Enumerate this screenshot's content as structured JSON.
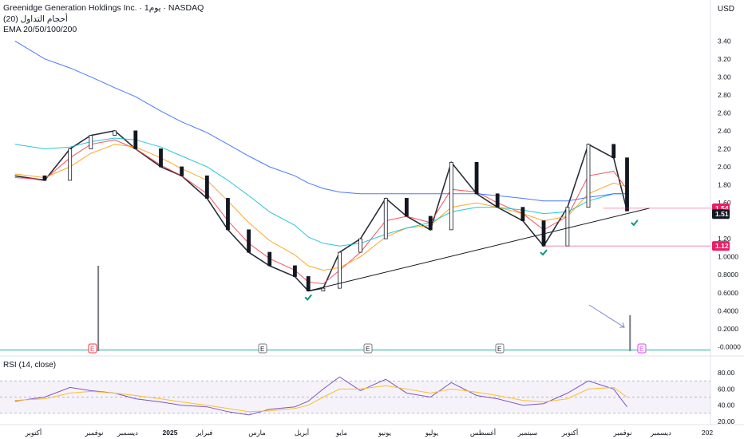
{
  "header": {
    "line1": "Greenidge Generation Holdings Inc. · 1يوم · NASDAQ",
    "line2": "أحجام التداول (20)",
    "line3": "EMA 20/50/100/200",
    "currency": "USD"
  },
  "rsi": {
    "title": "RSI (14, close)",
    "ticks": [
      "80.00",
      "60.00",
      "40.00",
      "20.00"
    ]
  },
  "price_axis": {
    "ticks": [
      "3.40",
      "3.20",
      "3.00",
      "2.80",
      "2.60",
      "2.40",
      "2.20",
      "2.00",
      "1.80",
      "1.60",
      "1.20",
      "1.0000",
      "0.8000",
      "0.6000",
      "0.4000",
      "0.2000",
      "-0.0000"
    ],
    "labels": [
      {
        "text": "1.54",
        "value": 1.54,
        "color": "#e91e63"
      },
      {
        "text": "1.51",
        "value": 1.51,
        "color": "#131722"
      },
      {
        "text": "1.12",
        "value": 1.12,
        "color": "#e91e63"
      }
    ]
  },
  "x_axis": {
    "ticks": [
      "أكتوبر",
      "نوفمبر",
      "ديسمبر",
      "2025",
      "فبراير",
      "مارس",
      "أبريل",
      "مايو",
      "يونيو",
      "يوليو",
      "أغسطس",
      "سبتمبر",
      "أكتوبر",
      "نوفمبر",
      "ديسمبر",
      "202"
    ]
  },
  "earnings_markers": [
    "E",
    "E",
    "E",
    "E",
    "E"
  ],
  "colors": {
    "up": "#089981",
    "down": "#131722",
    "ema20": "#f23645",
    "ema50": "#ff9800",
    "ema100": "#00bcd4",
    "ema200": "#2962ff",
    "rsi": "#7e57c2",
    "rsi_ma": "#fbc02d",
    "trendline": "#131722",
    "check": "#089981",
    "volume": "#787b86",
    "volume_up": "#26a69a"
  },
  "chart_data": [
    {
      "type": "line",
      "title": "Greenidge Generation Holdings Inc. · 1يوم · NASDAQ",
      "ylabel": "USD",
      "ylim": [
        -0.05,
        3.5
      ],
      "scale": "linear",
      "x": [
        "2024-09-25",
        "2024-10-15",
        "2024-11-01",
        "2024-11-15",
        "2024-12-01",
        "2024-12-15",
        "2025-01-01",
        "2025-01-15",
        "2025-02-01",
        "2025-02-15",
        "2025-03-01",
        "2025-03-15",
        "2025-04-01",
        "2025-04-10",
        "2025-04-20",
        "2025-05-01",
        "2025-05-15",
        "2025-06-01",
        "2025-06-15",
        "2025-07-01",
        "2025-07-15",
        "2025-08-01",
        "2025-08-15",
        "2025-09-01",
        "2025-09-15",
        "2025-10-01",
        "2025-10-15",
        "2025-11-01",
        "2025-11-10"
      ],
      "series": [
        {
          "name": "price",
          "values": [
            1.9,
            1.85,
            2.2,
            2.35,
            2.4,
            2.2,
            2.0,
            1.9,
            1.65,
            1.3,
            1.05,
            0.9,
            0.78,
            0.62,
            0.65,
            1.05,
            1.2,
            1.65,
            1.45,
            1.3,
            2.05,
            1.7,
            1.55,
            1.4,
            1.12,
            1.55,
            2.25,
            2.1,
            1.51
          ]
        },
        {
          "name": "EMA 20",
          "values": [
            1.88,
            1.86,
            2.1,
            2.25,
            2.3,
            2.2,
            2.02,
            1.9,
            1.7,
            1.4,
            1.15,
            0.98,
            0.85,
            0.72,
            0.7,
            0.85,
            1.05,
            1.4,
            1.45,
            1.38,
            1.75,
            1.72,
            1.6,
            1.48,
            1.3,
            1.45,
            1.9,
            1.95,
            1.75
          ]
        },
        {
          "name": "EMA 50",
          "values": [
            1.92,
            1.88,
            2.0,
            2.15,
            2.25,
            2.22,
            2.1,
            1.98,
            1.85,
            1.62,
            1.38,
            1.18,
            1.02,
            0.9,
            0.85,
            0.88,
            1.0,
            1.22,
            1.32,
            1.35,
            1.55,
            1.6,
            1.55,
            1.48,
            1.4,
            1.45,
            1.7,
            1.82,
            1.78
          ]
        },
        {
          "name": "EMA 100",
          "values": [
            2.25,
            2.2,
            2.22,
            2.28,
            2.32,
            2.3,
            2.22,
            2.12,
            2.0,
            1.85,
            1.68,
            1.5,
            1.35,
            1.22,
            1.15,
            1.12,
            1.15,
            1.25,
            1.32,
            1.38,
            1.5,
            1.55,
            1.55,
            1.52,
            1.48,
            1.5,
            1.62,
            1.7,
            1.7
          ]
        },
        {
          "name": "EMA 200",
          "values": [
            3.4,
            3.2,
            3.1,
            3.0,
            2.88,
            2.78,
            2.62,
            2.5,
            2.38,
            2.25,
            2.12,
            2.0,
            1.9,
            1.82,
            1.76,
            1.72,
            1.7,
            1.7,
            1.7,
            1.7,
            1.7,
            1.7,
            1.68,
            1.65,
            1.62,
            1.62,
            1.66,
            1.7,
            1.7
          ]
        }
      ],
      "trendline": {
        "from": [
          "2025-04-10",
          0.62
        ],
        "to": [
          "2025-11-25",
          1.54
        ]
      },
      "levels": [
        1.54,
        1.51,
        1.12
      ],
      "volume_spikes": [
        {
          "x": "2024-11-20",
          "value": 0.9
        },
        {
          "x": "2025-11-12",
          "value": 0.35
        }
      ]
    },
    {
      "type": "line",
      "title": "RSI (14, close)",
      "ylim": [
        20,
        85
      ],
      "bands": [
        30,
        50,
        70
      ],
      "x": [
        "2024-09-25",
        "2024-10-15",
        "2024-11-01",
        "2024-11-15",
        "2024-12-01",
        "2024-12-15",
        "2025-01-01",
        "2025-01-15",
        "2025-02-01",
        "2025-02-15",
        "2025-03-01",
        "2025-03-15",
        "2025-04-01",
        "2025-04-10",
        "2025-04-20",
        "2025-05-01",
        "2025-05-15",
        "2025-06-01",
        "2025-06-15",
        "2025-07-01",
        "2025-07-15",
        "2025-08-01",
        "2025-08-15",
        "2025-09-01",
        "2025-09-15",
        "2025-10-01",
        "2025-10-15",
        "2025-11-01",
        "2025-11-10"
      ],
      "series": [
        {
          "name": "RSI",
          "values": [
            45,
            50,
            62,
            58,
            55,
            48,
            44,
            40,
            38,
            32,
            28,
            35,
            38,
            45,
            60,
            75,
            58,
            72,
            55,
            50,
            68,
            52,
            48,
            40,
            42,
            55,
            70,
            60,
            38
          ]
        },
        {
          "name": "MA",
          "values": [
            46,
            48,
            55,
            57,
            55,
            52,
            48,
            44,
            40,
            36,
            32,
            33,
            36,
            40,
            50,
            60,
            60,
            64,
            60,
            55,
            60,
            56,
            52,
            46,
            44,
            48,
            60,
            62,
            50
          ]
        }
      ]
    }
  ]
}
